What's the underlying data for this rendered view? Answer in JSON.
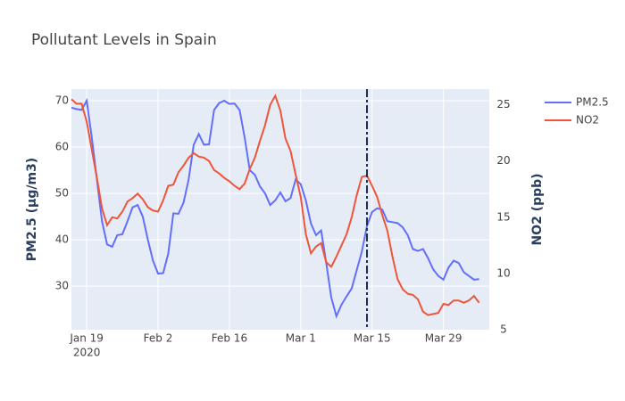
{
  "chart_data": {
    "type": "line",
    "title": "Pollutant Levels in Spain",
    "x": [
      "2020-01-16",
      "2020-01-17",
      "2020-01-18",
      "2020-01-19",
      "2020-01-20",
      "2020-01-21",
      "2020-01-22",
      "2020-01-23",
      "2020-01-24",
      "2020-01-25",
      "2020-01-26",
      "2020-01-27",
      "2020-01-28",
      "2020-01-29",
      "2020-01-30",
      "2020-01-31",
      "2020-02-01",
      "2020-02-02",
      "2020-02-03",
      "2020-02-04",
      "2020-02-05",
      "2020-02-06",
      "2020-02-07",
      "2020-02-08",
      "2020-02-09",
      "2020-02-10",
      "2020-02-11",
      "2020-02-12",
      "2020-02-13",
      "2020-02-14",
      "2020-02-15",
      "2020-02-16",
      "2020-02-17",
      "2020-02-18",
      "2020-02-19",
      "2020-02-20",
      "2020-02-21",
      "2020-02-22",
      "2020-02-23",
      "2020-02-24",
      "2020-02-25",
      "2020-02-26",
      "2020-02-27",
      "2020-02-28",
      "2020-02-29",
      "2020-03-01",
      "2020-03-02",
      "2020-03-03",
      "2020-03-04",
      "2020-03-05",
      "2020-03-06",
      "2020-03-07",
      "2020-03-08",
      "2020-03-09",
      "2020-03-10",
      "2020-03-11",
      "2020-03-12",
      "2020-03-13",
      "2020-03-14",
      "2020-03-15",
      "2020-03-16",
      "2020-03-17",
      "2020-03-18",
      "2020-03-19",
      "2020-03-20",
      "2020-03-21",
      "2020-03-22",
      "2020-03-23",
      "2020-03-24",
      "2020-03-25",
      "2020-03-26",
      "2020-03-27",
      "2020-03-28",
      "2020-03-29",
      "2020-03-30",
      "2020-03-31",
      "2020-04-01",
      "2020-04-02",
      "2020-04-03",
      "2020-04-04",
      "2020-04-05"
    ],
    "series": [
      {
        "name": "PM2.5",
        "color": "#636efa",
        "axis": "y",
        "values": [
          68.5,
          68.2,
          68,
          70,
          62,
          53,
          44,
          39,
          38.5,
          41,
          41.2,
          44,
          47,
          47.5,
          45,
          40,
          35.5,
          32.7,
          32.8,
          37,
          45.7,
          45.6,
          48,
          53,
          60.5,
          62.8,
          60.5,
          60.6,
          68,
          69.5,
          70,
          69.3,
          69.4,
          68,
          62,
          55,
          54,
          51.5,
          50,
          47.5,
          48.5,
          50.2,
          48.3,
          49,
          53,
          52,
          48.5,
          43.5,
          41,
          42,
          35,
          27.5,
          23.5,
          26,
          27.8,
          29.5,
          33.5,
          37.5,
          43,
          46,
          46.8,
          46.5,
          44,
          43.8,
          43.6,
          42.7,
          41,
          38,
          37.6,
          38,
          36,
          33.6,
          32.2,
          31.4,
          34,
          35.5,
          35,
          33,
          32.2,
          31.4,
          31.5
        ]
      },
      {
        "name": "NO2",
        "color": "#EF553B",
        "axis": "y2",
        "values": [
          25.5,
          25.1,
          25.1,
          23.5,
          21,
          18.5,
          15.8,
          14.3,
          15,
          14.9,
          15.5,
          16.4,
          16.7,
          17.1,
          16.6,
          15.9,
          15.6,
          15.5,
          16.5,
          17.8,
          17.9,
          19,
          19.6,
          20.3,
          20.7,
          20.4,
          20.3,
          20,
          19.2,
          18.9,
          18.5,
          18.2,
          17.8,
          17.5,
          18,
          19.3,
          20.3,
          21.8,
          23.2,
          25,
          25.8,
          24.5,
          22,
          20.9,
          18.8,
          16.8,
          13.5,
          11.8,
          12.4,
          12.7,
          11,
          10.6,
          11.5,
          12.5,
          13.5,
          15,
          17,
          18.6,
          18.7,
          17.8,
          16.8,
          15.2,
          13.8,
          11.5,
          9.5,
          8.6,
          8.2,
          8.1,
          7.7,
          6.6,
          6.3,
          6.4,
          6.5,
          7.3,
          7.2,
          7.6,
          7.6,
          7.4,
          7.6,
          8,
          7.4
        ]
      }
    ],
    "xlim": [
      "2020-01-16",
      "2020-04-07"
    ],
    "xticks": [
      {
        "value": "2020-01-19",
        "label": "Jan 19"
      },
      {
        "value": "2020-02-02",
        "label": "Feb 2"
      },
      {
        "value": "2020-02-16",
        "label": "Feb 16"
      },
      {
        "value": "2020-03-01",
        "label": "Mar 1"
      },
      {
        "value": "2020-03-15",
        "label": "Mar 15"
      },
      {
        "value": "2020-03-29",
        "label": "Mar 29"
      }
    ],
    "x_year_label": "2020",
    "ylim": [
      20.6,
      72.5
    ],
    "yticks": [
      30,
      40,
      50,
      60,
      70
    ],
    "y2lim": [
      5,
      26.4
    ],
    "y2ticks": [
      5,
      10,
      15,
      20,
      25
    ],
    "ylabel": "PM2.5 (µg/m3)",
    "y2label": "NO2 (ppb)",
    "vline": {
      "x": "2020-03-14",
      "color": "#1f2d4d"
    },
    "grid": true,
    "legend": "top-right"
  }
}
